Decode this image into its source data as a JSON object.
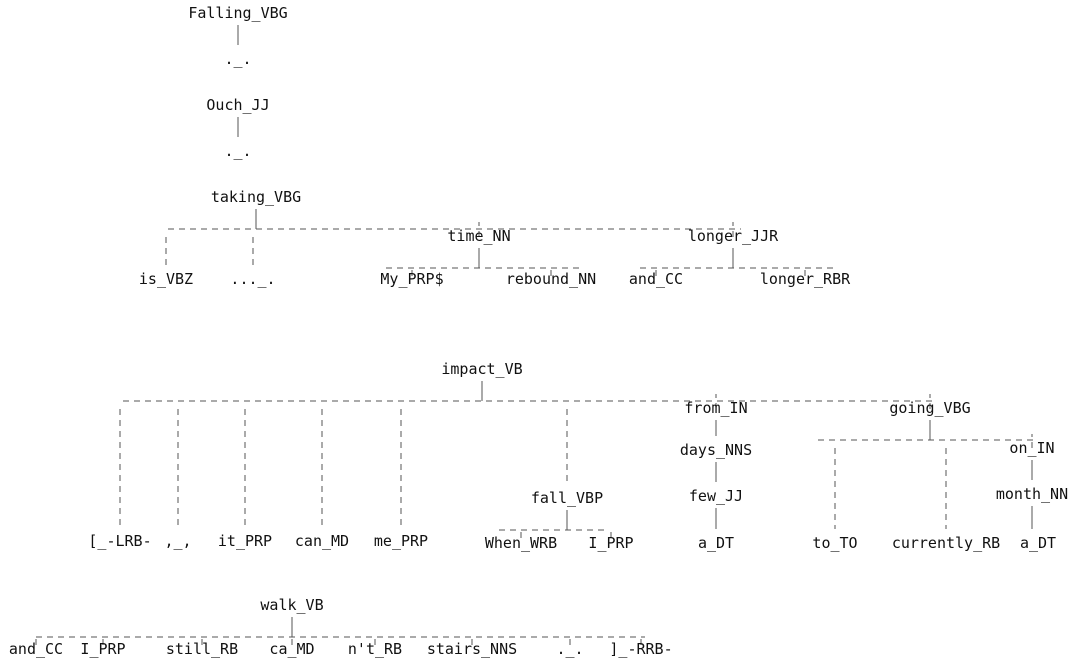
{
  "colors": {
    "text": "#111111",
    "line": "#555555",
    "background": "#ffffff"
  },
  "trees": [
    {
      "id": "tree1",
      "root": {
        "id": "t1n0",
        "label": "Falling_VBG",
        "children": [
          {
            "id": "t1n1",
            "label": "._."
          }
        ]
      }
    },
    {
      "id": "tree2",
      "root": {
        "id": "t2n0",
        "label": "Ouch_JJ",
        "children": [
          {
            "id": "t2n1",
            "label": "._."
          }
        ]
      }
    },
    {
      "id": "tree3",
      "root": {
        "id": "t3n0",
        "label": "taking_VBG",
        "children": [
          {
            "id": "t3n1",
            "label": "is_VBZ"
          },
          {
            "id": "t3n2",
            "label": "..._."
          },
          {
            "id": "t3n3",
            "label": "time_NN",
            "children": [
              {
                "id": "t3n4",
                "label": "My_PRP$"
              },
              {
                "id": "t3n5",
                "label": "rebound_NN"
              }
            ]
          },
          {
            "id": "t3n6",
            "label": "longer_JJR",
            "children": [
              {
                "id": "t3n7",
                "label": "and_CC"
              },
              {
                "id": "t3n8",
                "label": "longer_RBR"
              }
            ]
          }
        ]
      }
    },
    {
      "id": "tree4",
      "root": {
        "id": "t4n0",
        "label": "impact_VB",
        "children": [
          {
            "id": "t4n1",
            "label": "[_-LRB-"
          },
          {
            "id": "t4n2",
            "label": ",_,"
          },
          {
            "id": "t4n3",
            "label": "it_PRP"
          },
          {
            "id": "t4n4",
            "label": "can_MD"
          },
          {
            "id": "t4n5",
            "label": "me_PRP"
          },
          {
            "id": "t4n6",
            "label": "fall_VBP",
            "children": [
              {
                "id": "t4n7",
                "label": "When_WRB"
              },
              {
                "id": "t4n8",
                "label": "I_PRP"
              }
            ]
          },
          {
            "id": "t4n9",
            "label": "from_IN",
            "children": [
              {
                "id": "t4n10",
                "label": "days_NNS",
                "children": [
                  {
                    "id": "t4n11",
                    "label": "few_JJ",
                    "children": [
                      {
                        "id": "t4n12",
                        "label": "a_DT"
                      }
                    ]
                  }
                ]
              }
            ]
          },
          {
            "id": "t4n13",
            "label": "going_VBG",
            "children": [
              {
                "id": "t4n14",
                "label": "to_TO"
              },
              {
                "id": "t4n15",
                "label": "currently_RB"
              },
              {
                "id": "t4n16",
                "label": "on_IN",
                "children": [
                  {
                    "id": "t4n17",
                    "label": "month_NN",
                    "children": [
                      {
                        "id": "t4n18",
                        "label": "a_DT"
                      }
                    ]
                  }
                ]
              }
            ]
          }
        ]
      }
    },
    {
      "id": "tree5",
      "root": {
        "id": "t5n0",
        "label": "walk_VB",
        "children": [
          {
            "id": "t5n1",
            "label": "and_CC"
          },
          {
            "id": "t5n2",
            "label": "I_PRP"
          },
          {
            "id": "t5n3",
            "label": "still_RB"
          },
          {
            "id": "t5n4",
            "label": "ca_MD"
          },
          {
            "id": "t5n5",
            "label": "n't_RB"
          },
          {
            "id": "t5n6",
            "label": "stairs_NNS"
          },
          {
            "id": "t5n7",
            "label": "._."
          },
          {
            "id": "t5n8",
            "label": "]_-RRB-"
          }
        ]
      }
    }
  ]
}
